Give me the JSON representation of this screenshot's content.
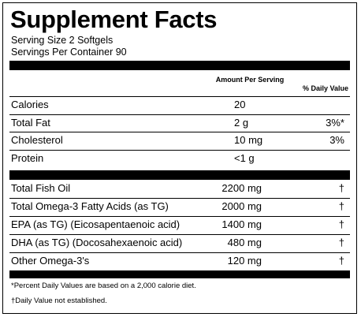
{
  "title": "Supplement Facts",
  "serving_size": "Serving Size 2 Softgels",
  "servings_per_container": "Servings Per Container 90",
  "table": {
    "header": [
      "Amount Per Serving",
      "% Daily Value"
    ],
    "groups": [
      [
        [
          "Calories",
          "20"
        ],
        [
          "Total Fat",
          "2 g",
          "3%*"
        ],
        [
          "Cholesterol",
          "10 mg",
          "3%"
        ],
        [
          "Protein",
          "<1 g"
        ]
      ],
      [
        [
          "Total Fish Oil",
          "2200 mg",
          "†"
        ],
        [
          "Total Omega-3 Fatty Acids (as TG)",
          "2000 mg",
          "†"
        ],
        [
          "EPA (as TG) (Eicosapentaenoic acid)",
          "1400 mg",
          "†"
        ],
        [
          "DHA (as TG) (Docosahexaenoic acid)",
          "480 mg",
          "†"
        ],
        [
          "Other Omega-3's",
          "120 mg",
          "†"
        ]
      ]
    ]
  },
  "footnotes": [
    "*Percent Daily Values are based on a 2,000 calorie diet.",
    "†Daily Value not established."
  ]
}
